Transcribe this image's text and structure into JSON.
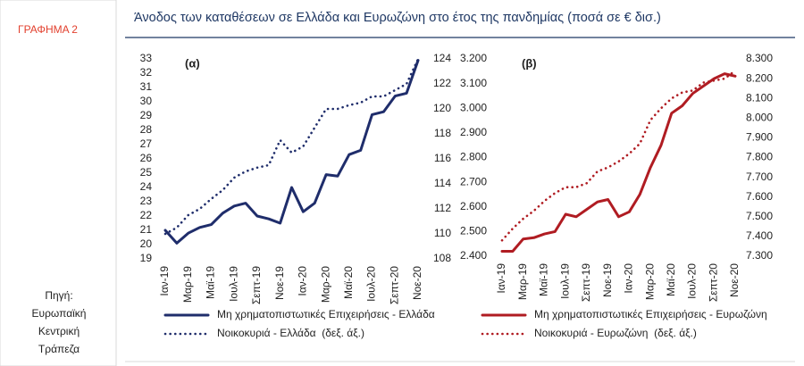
{
  "figure_label": "ΓΡΑΦΗΜΑ 2",
  "source": [
    "Πηγή:",
    "Ευρωπαϊκή",
    "Κεντρική",
    "Τράπεζα"
  ],
  "title": "Άνοδος των καταθέσεων σε Ελλάδα και Ευρωζώνη στο έτος της πανδημίας (ποσά σε € δισ.)",
  "chart_data": [
    {
      "type": "line",
      "subtitle": "(α)",
      "categories": [
        "Ιαν-19",
        null,
        "Μαρ-19",
        null,
        "Μαϊ-19",
        null,
        "Ιουλ-19",
        null,
        "Σεπτ-19",
        null,
        "Νοε-19",
        null,
        "Ιαν-20",
        null,
        "Μαρ-20",
        null,
        "Μαϊ-20",
        null,
        "Ιουλ-20",
        null,
        "Σεπτ-20",
        null,
        "Νοε-20"
      ],
      "ylim": [
        19,
        33
      ],
      "yticks": [
        19,
        20,
        21,
        22,
        23,
        24,
        25,
        26,
        27,
        28,
        29,
        30,
        31,
        32,
        33
      ],
      "y2lim": [
        108,
        124
      ],
      "y2ticks": [
        108,
        110,
        112,
        114,
        116,
        118,
        120,
        122,
        124
      ],
      "series": [
        {
          "name": "Μη χρηματοπιστωτικές Επιχειρήσεις - Ελλάδα",
          "color": "#1f2d6b",
          "style": "solid",
          "values": [
            21.0,
            20.1,
            20.8,
            21.2,
            21.4,
            22.2,
            22.7,
            22.9,
            22.0,
            21.8,
            21.5,
            24.0,
            22.3,
            22.9,
            24.9,
            24.8,
            26.3,
            26.6,
            29.1,
            29.3,
            30.4,
            30.6,
            32.9
          ]
        },
        {
          "name": "Νοικοκυριά - Ελλάδα  (δεξ. άξ.)",
          "color": "#1f2d6b",
          "style": "dotted",
          "axis": "y2",
          "values": [
            110.0,
            110.5,
            111.5,
            112.0,
            112.8,
            113.5,
            114.5,
            115.0,
            115.3,
            115.5,
            117.5,
            116.5,
            117.0,
            118.5,
            120.0,
            120.0,
            120.3,
            120.5,
            121.0,
            121.0,
            121.5,
            122.0,
            124.0
          ]
        }
      ]
    },
    {
      "type": "line",
      "subtitle": "(β)",
      "categories": [
        "Ιαν-19",
        null,
        "Μαρ-19",
        null,
        "Μαϊ-19",
        null,
        "Ιουλ-19",
        null,
        "Σεπτ-19",
        null,
        "Νοε-19",
        null,
        "Ιαν-20",
        null,
        "Μαρ-20",
        null,
        "Μαϊ-20",
        null,
        "Ιουλ-20",
        null,
        "Σεπτ-20",
        null,
        "Νοε-20"
      ],
      "ylim": [
        2400,
        3200
      ],
      "yticks": [
        {
          "value": 2400,
          "label": "2.400"
        },
        {
          "value": 2500,
          "label": "2.500"
        },
        {
          "value": 2600,
          "label": "2.600"
        },
        {
          "value": 2700,
          "label": "2.700"
        },
        {
          "value": 2800,
          "label": "2.800"
        },
        {
          "value": 2900,
          "label": "2.900"
        },
        {
          "value": 3000,
          "label": "3.000"
        },
        {
          "value": 3100,
          "label": "3.100"
        },
        {
          "value": 3200,
          "label": "3.200"
        }
      ],
      "y2lim": [
        7300,
        8300
      ],
      "y2ticks": [
        {
          "value": 7300,
          "label": "7.300"
        },
        {
          "value": 7400,
          "label": "7.400"
        },
        {
          "value": 7500,
          "label": "7.500"
        },
        {
          "value": 7600,
          "label": "7.600"
        },
        {
          "value": 7700,
          "label": "7.700"
        },
        {
          "value": 7800,
          "label": "7.800"
        },
        {
          "value": 7900,
          "label": "7.900"
        },
        {
          "value": 8000,
          "label": "8.000"
        },
        {
          "value": 8100,
          "label": "8.100"
        },
        {
          "value": 8200,
          "label": "8.200"
        },
        {
          "value": 8300,
          "label": "8.300"
        }
      ],
      "series": [
        {
          "name": "Μη χρηματοπιστωτικές Επιχειρήσεις - Ευρωζώνη",
          "color": "#b01c22",
          "style": "solid",
          "values": [
            2420,
            2420,
            2470,
            2475,
            2490,
            2500,
            2570,
            2560,
            2590,
            2620,
            2630,
            2560,
            2580,
            2650,
            2760,
            2850,
            2980,
            3010,
            3060,
            3090,
            3120,
            3140,
            3130
          ]
        },
        {
          "name": "Νοικοκυριά - Ευρωζώνη  (δεξ. άξ.)",
          "color": "#b01c22",
          "style": "dotted",
          "axis": "y2",
          "values": [
            7380,
            7440,
            7490,
            7530,
            7580,
            7620,
            7650,
            7650,
            7670,
            7730,
            7750,
            7780,
            7820,
            7870,
            7990,
            8050,
            8100,
            8130,
            8140,
            8180,
            8190,
            8200,
            8240
          ]
        }
      ]
    }
  ]
}
